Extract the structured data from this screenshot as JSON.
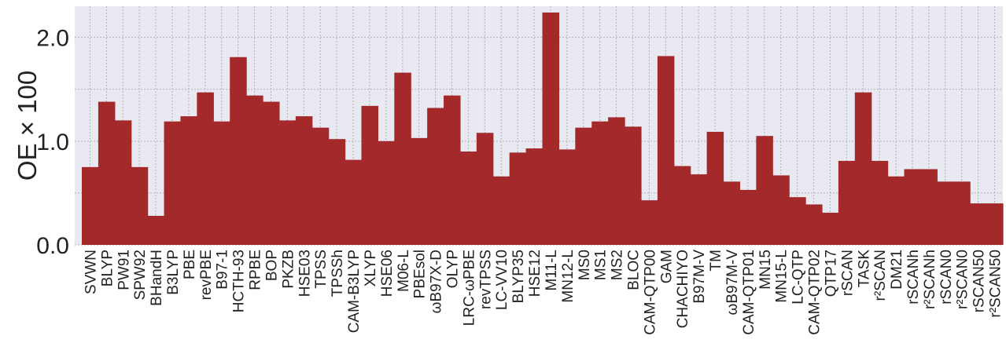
{
  "chart_data": {
    "type": "bar",
    "ylabel": "OE × 100",
    "ylim": [
      0,
      2.3
    ],
    "yticks": [
      "0.0",
      "1.0",
      "2.0"
    ],
    "ytick_values": [
      0,
      1,
      2
    ],
    "grid": true,
    "colors": {
      "bar": "#a3292b",
      "plot_bg": "#e9e9f1",
      "grid": "#b0b0b8"
    },
    "categories": [
      "SVWN",
      "BLYP",
      "PW91",
      "SPW92",
      "BHandH",
      "B3LYP",
      "PBE",
      "revPBE",
      "B97-1",
      "HCTH-93",
      "RPBE",
      "BOP",
      "PKZB",
      "HSE03",
      "TPSS",
      "TPSSh",
      "CAM-B3LYP",
      "XLYP",
      "HSE06",
      "M06-L",
      "PBEsol",
      "ωB97X-D",
      "OLYP",
      "LRC-ωPBE",
      "revTPSS",
      "LC-VV10",
      "BLYP35",
      "HSE12",
      "M11-L",
      "MN12-L",
      "MS0",
      "MS1",
      "MS2",
      "BLOC",
      "CAM-QTP00",
      "GAM",
      "CHACHIYO",
      "B97M-V",
      "TM",
      "ωB97M-V",
      "CAM-QTP01",
      "MN15",
      "MN15-L",
      "LC-QTP",
      "CAM-QTP02",
      "QTP17",
      "rSCAN",
      "TASK",
      "r²SCAN",
      "DM21",
      "rSCANh",
      "r²SCANh",
      "rSCAN0",
      "r²SCAN0",
      "rSCAN50",
      "r²SCAN50"
    ],
    "values": [
      0.75,
      1.38,
      1.2,
      0.75,
      0.28,
      1.19,
      1.24,
      1.47,
      1.19,
      1.81,
      1.44,
      1.38,
      1.2,
      1.24,
      1.13,
      1.02,
      0.82,
      1.34,
      1.0,
      1.66,
      1.03,
      1.32,
      1.44,
      0.9,
      1.08,
      0.66,
      0.89,
      0.93,
      2.24,
      0.92,
      1.13,
      1.19,
      1.23,
      1.14,
      0.43,
      1.82,
      0.76,
      0.68,
      1.09,
      0.61,
      0.53,
      1.05,
      0.67,
      0.46,
      0.39,
      0.31,
      0.81,
      1.47,
      0.81,
      0.66,
      0.73,
      0.73,
      0.61,
      0.61,
      0.4,
      0.4
    ]
  }
}
